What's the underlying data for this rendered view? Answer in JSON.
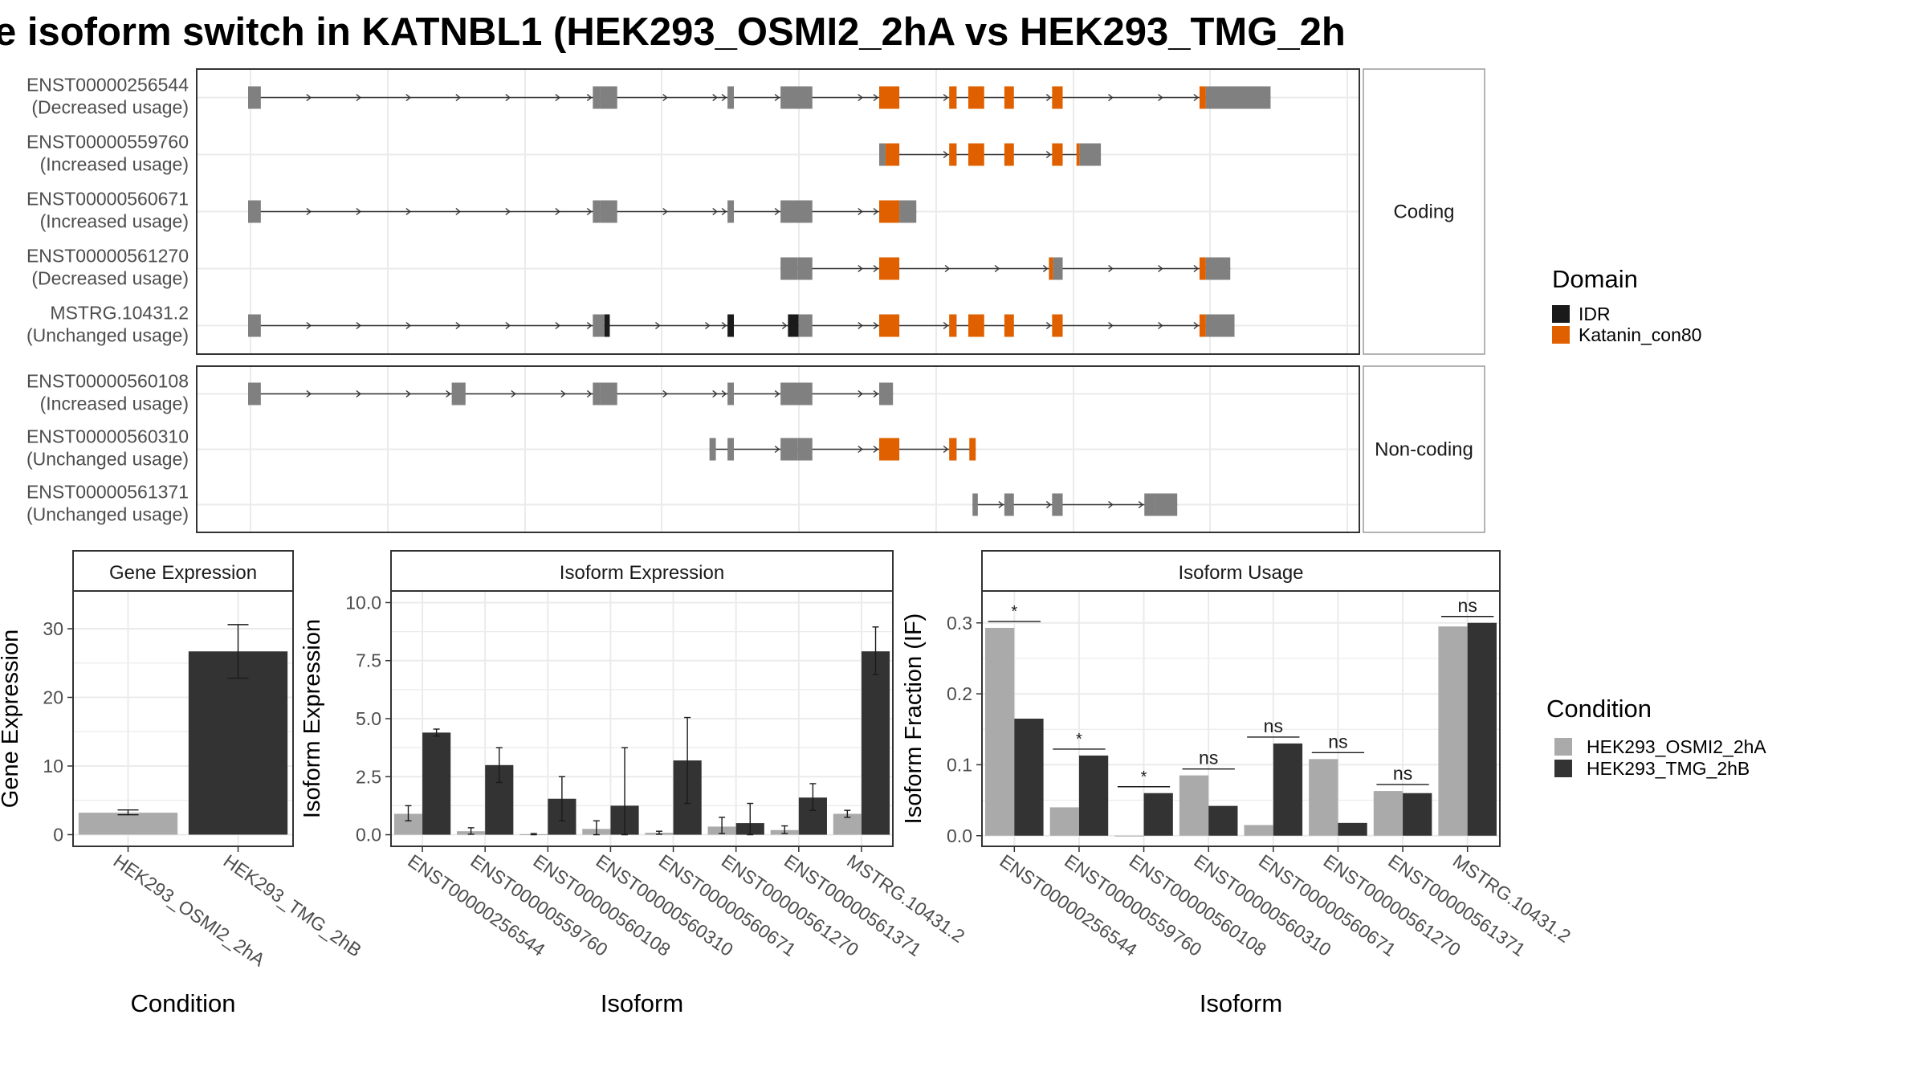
{
  "title": "e isoform switch in KATNBL1 (HEK293_OSMI2_2hA vs HEK293_TMG_2h",
  "colors": {
    "exon": "#808080",
    "idr": "#1a1a1a",
    "katanin": "#e06000",
    "cond_a": "#aaaaaa",
    "cond_b": "#333333",
    "panel_border": "#333333",
    "strip_border": "#9a9a9a",
    "grid": "#ebebeb"
  },
  "structure": {
    "x_range": [
      0,
      100
    ],
    "legend": {
      "title": "Domain",
      "items": [
        {
          "label": "IDR",
          "color_key": "idr"
        },
        {
          "label": "Katanin_con80",
          "color_key": "katanin"
        }
      ]
    },
    "panels": [
      {
        "label": "Coding",
        "isoforms": [
          {
            "id": "ENST00000256544",
            "usage": "(Decreased usage)",
            "exons": [
              [
                0,
                1.2,
                "exon"
              ],
              [
                32.5,
                33.2,
                "exon"
              ],
              [
                33.2,
                34.8,
                "exon"
              ],
              [
                45.2,
                45.8,
                "exon"
              ],
              [
                50.2,
                53.2,
                "exon"
              ],
              [
                59.5,
                61.4,
                "katanin"
              ],
              [
                66.1,
                66.8,
                "katanin"
              ],
              [
                67.9,
                69.4,
                "katanin"
              ],
              [
                71.3,
                72.2,
                "katanin"
              ],
              [
                75.8,
                76.8,
                "katanin"
              ],
              [
                89.7,
                90.3,
                "katanin"
              ],
              [
                90.3,
                96.4,
                "exon"
              ]
            ]
          },
          {
            "id": "ENST00000559760",
            "usage": "(Increased usage)",
            "exons": [
              [
                59.5,
                60.1,
                "exon"
              ],
              [
                60.1,
                61.4,
                "katanin"
              ],
              [
                66.1,
                66.8,
                "katanin"
              ],
              [
                67.9,
                69.4,
                "katanin"
              ],
              [
                71.3,
                72.2,
                "katanin"
              ],
              [
                75.8,
                76.8,
                "katanin"
              ],
              [
                78.1,
                78.4,
                "katanin"
              ],
              [
                78.4,
                80.4,
                "exon"
              ]
            ]
          },
          {
            "id": "ENST00000560671",
            "usage": "(Increased usage)",
            "exons": [
              [
                0,
                1.2,
                "exon"
              ],
              [
                32.5,
                33.2,
                "exon"
              ],
              [
                33.2,
                34.8,
                "exon"
              ],
              [
                45.2,
                45.8,
                "exon"
              ],
              [
                50.2,
                53.2,
                "exon"
              ],
              [
                59.5,
                61.4,
                "katanin"
              ],
              [
                61.4,
                63.0,
                "exon"
              ]
            ]
          },
          {
            "id": "ENST00000561270",
            "usage": "(Decreased usage)",
            "exons": [
              [
                50.2,
                51.8,
                "exon"
              ],
              [
                51.8,
                53.2,
                "exon"
              ],
              [
                59.5,
                61.4,
                "katanin"
              ],
              [
                75.5,
                75.9,
                "katanin"
              ],
              [
                75.9,
                76.8,
                "exon"
              ],
              [
                89.7,
                90.3,
                "katanin"
              ],
              [
                90.3,
                92.6,
                "exon"
              ]
            ]
          },
          {
            "id": "MSTRG.10431.2",
            "usage": "(Unchanged usage)",
            "exons": [
              [
                0,
                1.2,
                "exon"
              ],
              [
                32.5,
                33.6,
                "exon"
              ],
              [
                33.6,
                34.1,
                "idr"
              ],
              [
                45.2,
                45.8,
                "idr"
              ],
              [
                50.9,
                51.9,
                "idr"
              ],
              [
                51.9,
                53.2,
                "exon"
              ],
              [
                59.5,
                61.4,
                "katanin"
              ],
              [
                66.1,
                66.8,
                "katanin"
              ],
              [
                67.9,
                69.4,
                "katanin"
              ],
              [
                71.3,
                72.2,
                "katanin"
              ],
              [
                75.8,
                76.8,
                "katanin"
              ],
              [
                89.7,
                90.3,
                "katanin"
              ],
              [
                90.3,
                93.0,
                "exon"
              ]
            ]
          }
        ]
      },
      {
        "label": "Non-coding",
        "isoforms": [
          {
            "id": "ENST00000560108",
            "usage": "(Increased usage)",
            "exons": [
              [
                0,
                1.2,
                "exon"
              ],
              [
                19.2,
                20.5,
                "exon"
              ],
              [
                32.5,
                33.2,
                "exon"
              ],
              [
                33.2,
                34.8,
                "exon"
              ],
              [
                45.2,
                45.8,
                "exon"
              ],
              [
                50.2,
                53.2,
                "exon"
              ],
              [
                59.5,
                60.8,
                "exon"
              ]
            ]
          },
          {
            "id": "ENST00000560310",
            "usage": "(Unchanged usage)",
            "exons": [
              [
                43.5,
                44.1,
                "exon"
              ],
              [
                45.2,
                45.8,
                "exon"
              ],
              [
                50.2,
                51.8,
                "exon"
              ],
              [
                51.8,
                53.2,
                "exon"
              ],
              [
                59.5,
                61.4,
                "katanin"
              ],
              [
                66.1,
                66.8,
                "katanin"
              ],
              [
                68.0,
                68.6,
                "katanin"
              ]
            ]
          },
          {
            "id": "ENST00000561371",
            "usage": "(Unchanged usage)",
            "exons": [
              [
                68.3,
                68.8,
                "exon"
              ],
              [
                71.3,
                72.2,
                "exon"
              ],
              [
                75.8,
                76.8,
                "exon"
              ],
              [
                84.5,
                85.5,
                "exon"
              ],
              [
                85.5,
                87.6,
                "exon"
              ]
            ]
          }
        ]
      }
    ]
  },
  "chart_data": [
    {
      "type": "bar",
      "strip": "Gene Expression",
      "xlabel": "Condition",
      "ylabel": "Gene Expression",
      "ylim": [
        -1.7,
        35.5
      ],
      "yticks": [
        0,
        10,
        20,
        30
      ],
      "categories": [
        "HEK293_OSMI2_2hA",
        "HEK293_TMG_2hB"
      ],
      "values": [
        3.2,
        26.7
      ],
      "errors": [
        [
          2.9,
          3.6
        ],
        [
          22.8,
          30.6
        ]
      ],
      "color_keys": [
        "cond_a",
        "cond_b"
      ]
    },
    {
      "type": "bar",
      "strip": "Isoform Expression",
      "xlabel": "Isoform",
      "ylabel": "Isoform Expression",
      "ylim": [
        -0.5,
        10.5
      ],
      "yticks": [
        0.0,
        2.5,
        5.0,
        7.5,
        10.0
      ],
      "tick_labels": [
        "0.0",
        "2.5",
        "5.0",
        "7.5",
        "10.0"
      ],
      "categories": [
        "ENST00000256544",
        "ENST00000559760",
        "ENST00000560108",
        "ENST00000560310",
        "ENST00000560671",
        "ENST00000561270",
        "ENST00000561371",
        "MSTRG.10431.2"
      ],
      "series": [
        {
          "name": "HEK293_OSMI2_2hA",
          "color_key": "cond_a",
          "values": [
            0.9,
            0.15,
            0.02,
            0.25,
            0.08,
            0.35,
            0.2,
            0.9
          ],
          "errors": [
            [
              0.6,
              1.25
            ],
            [
              0.02,
              0.3
            ],
            [
              0.0,
              0.05
            ],
            [
              0.0,
              0.6
            ],
            [
              0.02,
              0.15
            ],
            [
              0.05,
              0.75
            ],
            [
              0.05,
              0.38
            ],
            [
              0.75,
              1.05
            ]
          ]
        },
        {
          "name": "HEK293_TMG_2hB",
          "color_key": "cond_b",
          "values": [
            4.4,
            3.0,
            1.55,
            1.25,
            3.2,
            0.5,
            1.6,
            7.9
          ],
          "errors": [
            [
              4.25,
              4.55
            ],
            [
              2.25,
              3.75
            ],
            [
              0.6,
              2.5
            ],
            [
              0.0,
              3.75
            ],
            [
              1.35,
              5.05
            ],
            [
              0.0,
              1.35
            ],
            [
              1.05,
              2.2
            ],
            [
              6.9,
              8.95
            ]
          ]
        }
      ]
    },
    {
      "type": "bar",
      "strip": "Isoform Usage",
      "xlabel": "Isoform",
      "ylabel": "Isoform Fraction (IF)",
      "ylim": [
        -0.015,
        0.345
      ],
      "yticks": [
        0.0,
        0.1,
        0.2,
        0.3
      ],
      "tick_labels": [
        "0.0",
        "0.1",
        "0.2",
        "0.3"
      ],
      "categories": [
        "ENST00000256544",
        "ENST00000559760",
        "ENST00000560108",
        "ENST00000560310",
        "ENST00000560671",
        "ENST00000561270",
        "ENST00000561371",
        "MSTRG.10431.2"
      ],
      "series": [
        {
          "name": "HEK293_OSMI2_2hA",
          "color_key": "cond_a",
          "values": [
            0.293,
            0.04,
            0.0,
            0.085,
            0.015,
            0.108,
            0.063,
            0.295
          ]
        },
        {
          "name": "HEK293_TMG_2hB",
          "color_key": "cond_b",
          "values": [
            0.165,
            0.113,
            0.06,
            0.042,
            0.13,
            0.018,
            0.06,
            0.3
          ]
        }
      ],
      "significance": [
        "*",
        "*",
        "*",
        "ns",
        "ns",
        "ns",
        "ns",
        "ns"
      ]
    }
  ],
  "condition_legend": {
    "title": "Condition",
    "items": [
      {
        "label": "HEK293_OSMI2_2hA",
        "color_key": "cond_a"
      },
      {
        "label": "HEK293_TMG_2hB",
        "color_key": "cond_b"
      }
    ]
  }
}
